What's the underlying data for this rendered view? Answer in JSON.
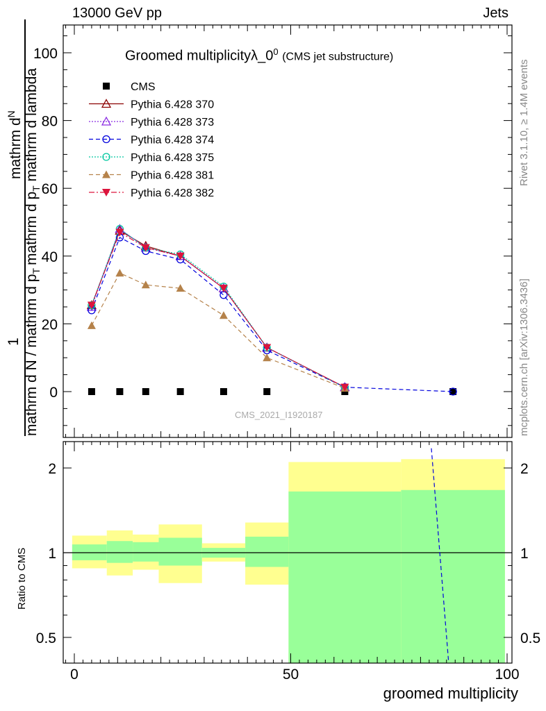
{
  "header": {
    "left": "13000 GeV pp",
    "right": "Jets"
  },
  "side_labels": {
    "rivet": "Rivet 3.1.10, ≥ 1.4M events",
    "mcplots": "mcplots.cern.ch [arXiv:1306.3436]"
  },
  "watermark": "CMS_2021_I1920187",
  "chart_data": [
    {
      "type": "line",
      "title": "Groomed multiplicityλ_0",
      "title_sup": "0",
      "subtitle": "(CMS jet substructure)",
      "xlabel": "groomed multiplicity",
      "ylabel_main": "mathrm d N / mathrm d p",
      "ylabel_sub": "T",
      "ylabel_tail": " mathrm d lambda",
      "ylabel_numer": "1",
      "ylabel_denom": "mathrm d N / mathrm d p",
      "ylabel_full_top": "mathrm d",
      "ylabel_full_top2": "N",
      "ylabel_full_mid": "mathrm d p",
      "ylabel_full_mid_sub": "T",
      "ylabel_full_end": "mathrm d lambda",
      "xlim": [
        -2,
        101
      ],
      "ylim": [
        -13,
        108
      ],
      "xticks": [
        0,
        50,
        100
      ],
      "yticks": [
        0,
        20,
        40,
        60,
        80,
        100
      ],
      "legend_position": "top-left",
      "x": [
        4,
        10.5,
        16.5,
        24.5,
        34.5,
        44.5,
        62.5,
        87.5
      ],
      "series": [
        {
          "name": "CMS",
          "color": "#000000",
          "dash": "",
          "marker": "square",
          "values": [
            0,
            0,
            0,
            0,
            0,
            0,
            0,
            0
          ]
        },
        {
          "name": "Pythia 6.428 370",
          "color": "#8b0000",
          "dash": "",
          "marker": "triangle-open",
          "values": [
            25.5,
            47.5,
            43.0,
            40.0,
            30.5,
            13.0,
            1.3,
            null
          ]
        },
        {
          "name": "Pythia 6.428 373",
          "color": "#8a2be2",
          "dash": "2,2",
          "marker": "triangle-open",
          "values": [
            25.0,
            48.0,
            42.5,
            40.0,
            30.5,
            13.0,
            1.3,
            null
          ]
        },
        {
          "name": "Pythia 6.428 374",
          "color": "#0000dd",
          "dash": "6,4",
          "marker": "circle-open",
          "values": [
            24.0,
            45.5,
            41.5,
            39.0,
            28.5,
            12.2,
            1.3,
            0.0
          ]
        },
        {
          "name": "Pythia 6.428 375",
          "color": "#00c8a0",
          "dash": "2,2",
          "marker": "circle-open",
          "values": [
            25.5,
            48.0,
            42.5,
            40.5,
            31.0,
            13.0,
            1.2,
            null
          ]
        },
        {
          "name": "Pythia 6.428 381",
          "color": "#b5824a",
          "dash": "6,4",
          "marker": "triangle",
          "values": [
            19.5,
            35.0,
            31.5,
            30.5,
            22.5,
            10.0,
            1.0,
            null
          ]
        },
        {
          "name": "Pythia 6.428 382",
          "color": "#dc143c",
          "dash": "8,3,2,3",
          "marker": "triangle-down",
          "values": [
            25.5,
            47.0,
            42.5,
            40.0,
            30.5,
            13.0,
            1.3,
            null
          ]
        }
      ]
    },
    {
      "type": "area",
      "ylabel": "Ratio to CMS",
      "xlabel": "groomed multiplicity",
      "log_y": true,
      "ylim": [
        0.38,
        2.35
      ],
      "yticks": [
        0.5,
        1,
        2
      ],
      "ytick_labels": [
        "0.5",
        "1",
        "2"
      ],
      "bins": [
        {
          "low": -0.5,
          "high": 7.5,
          "yellow": [
            0.88,
            1.15
          ],
          "green": [
            0.94,
            1.07
          ]
        },
        {
          "low": 7.5,
          "high": 13.5,
          "yellow": [
            0.83,
            1.2
          ],
          "green": [
            0.92,
            1.1
          ]
        },
        {
          "low": 13.5,
          "high": 19.5,
          "yellow": [
            0.87,
            1.16
          ],
          "green": [
            0.93,
            1.09
          ]
        },
        {
          "low": 19.5,
          "high": 29.5,
          "yellow": [
            0.78,
            1.26
          ],
          "green": [
            0.9,
            1.13
          ]
        },
        {
          "low": 29.5,
          "high": 39.5,
          "yellow": [
            0.93,
            1.08
          ],
          "green": [
            0.96,
            1.04
          ]
        },
        {
          "low": 39.5,
          "high": 49.5,
          "yellow": [
            0.77,
            1.28
          ],
          "green": [
            0.89,
            1.14
          ]
        },
        {
          "low": 49.5,
          "high": 75.5,
          "yellow": [
            0.38,
            2.1
          ],
          "green": [
            0.4,
            1.65
          ]
        },
        {
          "low": 75.5,
          "high": 99.5,
          "yellow": [
            0.38,
            2.15
          ],
          "green": [
            0.38,
            1.67
          ]
        }
      ],
      "ratio_line": {
        "series": "Pythia 6.428 374",
        "x": [
          82.5,
          86.5
        ],
        "values": [
          2.35,
          0.38
        ]
      }
    }
  ]
}
